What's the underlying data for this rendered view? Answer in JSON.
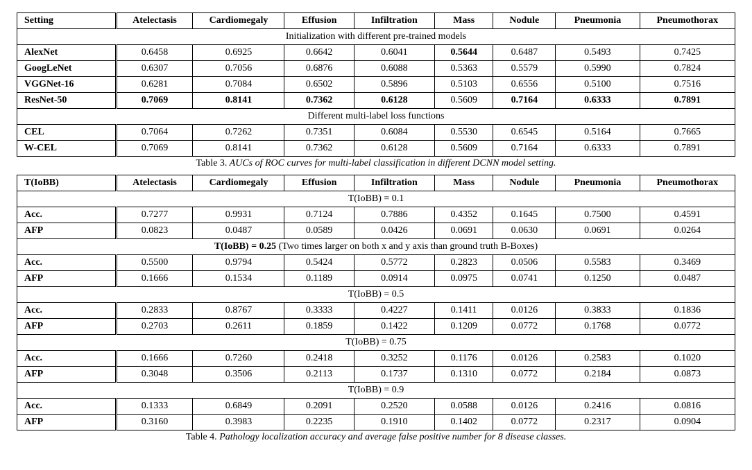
{
  "columns": [
    "Atelectasis",
    "Cardiomegaly",
    "Effusion",
    "Infiltration",
    "Mass",
    "Nodule",
    "Pneumonia",
    "Pneumothorax"
  ],
  "table3": {
    "corner": "Setting",
    "section1_title": "Initialization with different pre-trained models",
    "rows_init": [
      {
        "name": "AlexNet",
        "bold_name": true,
        "vals": [
          "0.6458",
          "0.6925",
          "0.6642",
          "0.6041",
          "0.5644",
          "0.6487",
          "0.5493",
          "0.7425"
        ],
        "bold_idx": [
          4
        ]
      },
      {
        "name": "GoogLeNet",
        "bold_name": true,
        "vals": [
          "0.6307",
          "0.7056",
          "0.6876",
          "0.6088",
          "0.5363",
          "0.5579",
          "0.5990",
          "0.7824"
        ]
      },
      {
        "name": "VGGNet-16",
        "bold_name": true,
        "vals": [
          "0.6281",
          "0.7084",
          "0.6502",
          "0.5896",
          "0.5103",
          "0.6556",
          "0.5100",
          "0.7516"
        ]
      },
      {
        "name": "ResNet-50",
        "bold_name": true,
        "vals": [
          "0.7069",
          "0.8141",
          "0.7362",
          "0.6128",
          "0.5609",
          "0.7164",
          "0.6333",
          "0.7891"
        ],
        "bold_idx": [
          0,
          1,
          2,
          3,
          5,
          6,
          7
        ]
      }
    ],
    "section2_title": "Different multi-label loss functions",
    "rows_loss": [
      {
        "name": "CEL",
        "bold_name": true,
        "vals": [
          "0.7064",
          "0.7262",
          "0.7351",
          "0.6084",
          "0.5530",
          "0.6545",
          "0.5164",
          "0.7665"
        ]
      },
      {
        "name": "W-CEL",
        "bold_name": true,
        "vals": [
          "0.7069",
          "0.8141",
          "0.7362",
          "0.6128",
          "0.5609",
          "0.7164",
          "0.6333",
          "0.7891"
        ]
      }
    ],
    "caption_label": "Table 3.",
    "caption_text": "AUCs of ROC curves for multi-label classification in different DCNN model setting."
  },
  "table4": {
    "corner": "T(IoBB)",
    "groups": [
      {
        "title": "T(IoBB) = 0.1",
        "title_bold": false,
        "rows": [
          {
            "name": "Acc.",
            "vals": [
              "0.7277",
              "0.9931",
              "0.7124",
              "0.7886",
              "0.4352",
              "0.1645",
              "0.7500",
              "0.4591"
            ]
          },
          {
            "name": "AFP",
            "vals": [
              "0.0823",
              "0.0487",
              "0.0589",
              "0.0426",
              "0.0691",
              "0.0630",
              "0.0691",
              "0.0264"
            ]
          }
        ]
      },
      {
        "title_bold_prefix": "T(IoBB) = 0.25",
        "title_rest": " (Two times larger on both x and y axis than ground truth B-Boxes)",
        "rows": [
          {
            "name": "Acc.",
            "vals": [
              "0.5500",
              "0.9794",
              "0.5424",
              "0.5772",
              "0.2823",
              "0.0506",
              "0.5583",
              "0.3469"
            ]
          },
          {
            "name": "AFP",
            "vals": [
              "0.1666",
              "0.1534",
              "0.1189",
              "0.0914",
              "0.0975",
              "0.0741",
              "0.1250",
              "0.0487"
            ]
          }
        ]
      },
      {
        "title": "T(IoBB) = 0.5",
        "title_bold": false,
        "rows": [
          {
            "name": "Acc.",
            "vals": [
              "0.2833",
              "0.8767",
              "0.3333",
              "0.4227",
              "0.1411",
              "0.0126",
              "0.3833",
              "0.1836"
            ]
          },
          {
            "name": "AFP",
            "vals": [
              "0.2703",
              "0.2611",
              "0.1859",
              "0.1422",
              "0.1209",
              "0.0772",
              "0.1768",
              "0.0772"
            ]
          }
        ]
      },
      {
        "title": "T(IoBB) = 0.75",
        "title_bold": false,
        "rows": [
          {
            "name": "Acc.",
            "vals": [
              "0.1666",
              "0.7260",
              "0.2418",
              "0.3252",
              "0.1176",
              "0.0126",
              "0.2583",
              "0.1020"
            ]
          },
          {
            "name": "AFP",
            "vals": [
              "0.3048",
              "0.3506",
              "0.2113",
              "0.1737",
              "0.1310",
              "0.0772",
              "0.2184",
              "0.0873"
            ]
          }
        ]
      },
      {
        "title": "T(IoBB) = 0.9",
        "title_bold": false,
        "rows": [
          {
            "name": "Acc.",
            "vals": [
              "0.1333",
              "0.6849",
              "0.2091",
              "0.2520",
              "0.0588",
              "0.0126",
              "0.2416",
              "0.0816"
            ]
          },
          {
            "name": "AFP",
            "vals": [
              "0.3160",
              "0.3983",
              "0.2235",
              "0.1910",
              "0.1402",
              "0.0772",
              "0.2317",
              "0.0904"
            ]
          }
        ]
      }
    ],
    "caption_label": "Table 4.",
    "caption_text": "Pathology localization accuracy and average false positive number for 8 disease classes."
  },
  "style": {
    "font_family": "Times New Roman",
    "base_font_size_pt": 11,
    "border_color": "#000000",
    "background": "#ffffff",
    "double_rule_after_first_column": true
  }
}
